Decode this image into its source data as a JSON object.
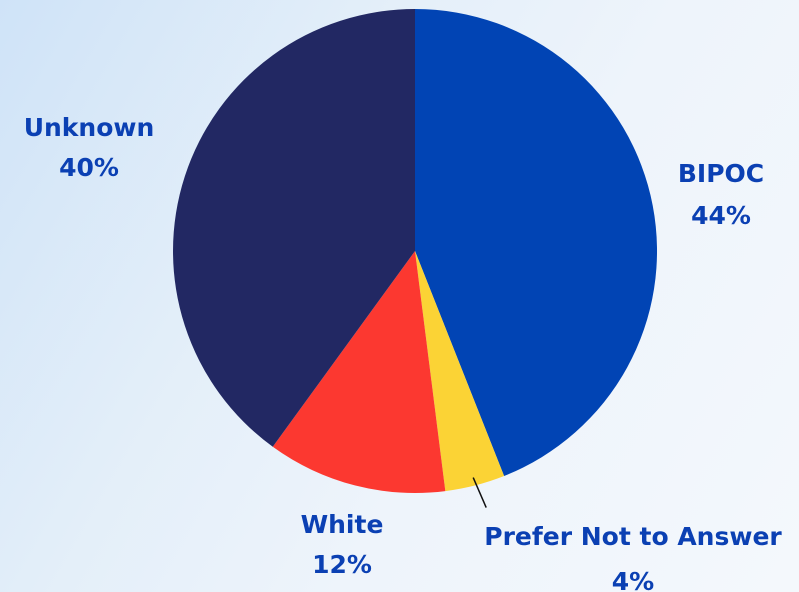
{
  "chart_data": {
    "type": "pie",
    "title": "",
    "slices": [
      {
        "label": "BIPOC",
        "value": 44,
        "display": "44%",
        "color": "#0144b4"
      },
      {
        "label": "Prefer Not to Answer",
        "value": 4,
        "display": "4%",
        "color": "#fbd335"
      },
      {
        "label": "White",
        "value": 12,
        "display": "12%",
        "color": "#fc3830"
      },
      {
        "label": "Unknown",
        "value": 40,
        "display": "40%",
        "color": "#222863"
      }
    ],
    "start_angle_deg": 0,
    "direction": "clockwise",
    "label_color": "#0b40b3",
    "legend": "none"
  }
}
